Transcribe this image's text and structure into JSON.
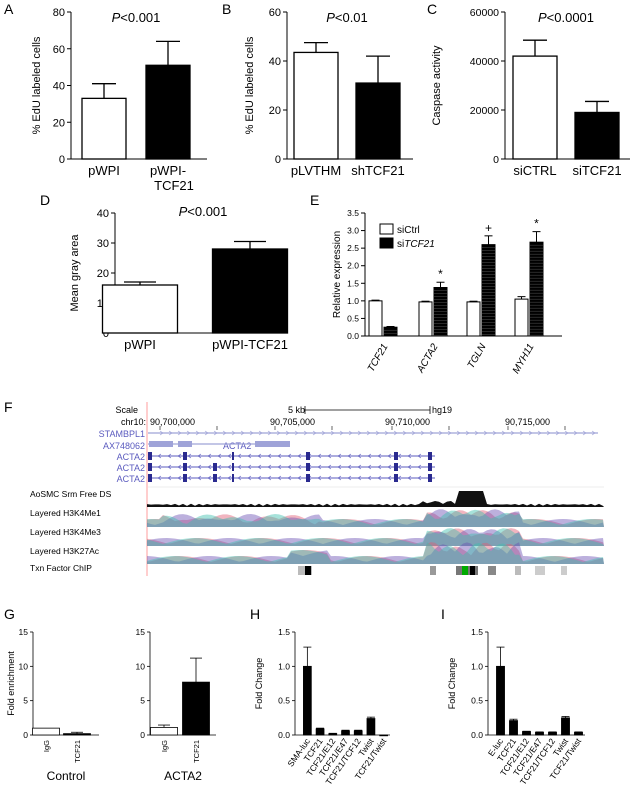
{
  "panels": {
    "A": {
      "letter": "A",
      "p": "P<0.001",
      "ylabel": "% EdU labeled cells",
      "ylim": [
        0,
        80
      ],
      "ticks": [
        "0",
        "20",
        "40",
        "60",
        "80"
      ],
      "cats": [
        "pWPI",
        "pWPI-"
      ],
      "cats2": [
        "",
        "TCF21"
      ],
      "values": [
        33,
        51
      ],
      "err": [
        8,
        13
      ]
    },
    "B": {
      "letter": "B",
      "p": "P<0.01",
      "ylabel": "% EdU labeled cells",
      "ylim": [
        0,
        60
      ],
      "ticks": [
        "0",
        "20",
        "40",
        "60"
      ],
      "cats": [
        "pLVTHM",
        "shTCF21"
      ],
      "values": [
        43.5,
        31
      ],
      "err": [
        4,
        11
      ]
    },
    "C": {
      "letter": "C",
      "p": "P<0.0001",
      "ylabel": "Caspase activity",
      "ylim": [
        0,
        60000
      ],
      "ticks": [
        "0",
        "20000",
        "40000",
        "60000"
      ],
      "cats": [
        "siCTRL",
        "siTCF21"
      ],
      "values": [
        42000,
        19000
      ],
      "err": [
        6500,
        4500
      ]
    },
    "D": {
      "letter": "D",
      "p": "P<0.001",
      "ylabel": "Mean gray area",
      "ylim": [
        0,
        40
      ],
      "ticks": [
        "0",
        "10",
        "20",
        "30",
        "40"
      ],
      "cats": [
        "pWPI",
        "pWPI-TCF21"
      ],
      "values": [
        16,
        28
      ],
      "err": [
        1,
        2.5
      ]
    },
    "E": {
      "letter": "E",
      "ylabel": "Relative expression",
      "ylim": [
        0,
        3.5
      ],
      "ticks": [
        "0.0",
        "0.5",
        "1.0",
        "1.5",
        "2.0",
        "2.5",
        "3.0",
        "3.5"
      ],
      "legend": [
        "siCtrl",
        "siTCF21"
      ],
      "cats": [
        "TCF21",
        "ACTA2",
        "TGLN",
        "MYH11"
      ],
      "ctrl": [
        1.0,
        0.97,
        0.97,
        1.05
      ],
      "ctrl_err": [
        0.02,
        0.02,
        0.02,
        0.07
      ],
      "si": [
        0.25,
        1.38,
        2.6,
        2.67
      ],
      "si_err": [
        0.02,
        0.15,
        0.25,
        0.3
      ],
      "marks": [
        "",
        "*",
        "+",
        "*"
      ]
    },
    "F": {
      "letter": "F",
      "scale": "Scale",
      "scale_val": "5 kb",
      "genome": "hg19",
      "chr": "chr10:",
      "positions": [
        "90,700,000",
        "90,705,000",
        "90,710,000",
        "90,715,000"
      ],
      "genes": [
        "STAMBPL1",
        "AX748062",
        "ACTA2",
        "ACTA2",
        "ACTA2",
        "ACTA2"
      ],
      "tracks": [
        "AoSMC Srm Free DS",
        "Layered H3K4Me1",
        "Layered H3K4Me3",
        "Layered H3K27Ac",
        "Txn Factor ChIP"
      ]
    },
    "G": {
      "letter": "G",
      "ylabel": "Fold enrichment",
      "ylim": [
        0,
        15
      ],
      "ticks": [
        "0",
        "5",
        "10",
        "15"
      ],
      "groups": [
        {
          "title": "Control",
          "cats": [
            "IgG",
            "TCF21"
          ],
          "values": [
            1.0,
            0.2
          ],
          "err": [
            0,
            0.2
          ]
        },
        {
          "title": "ACTA2",
          "cats": [
            "IgG",
            "TCF21"
          ],
          "values": [
            1.1,
            7.7
          ],
          "err": [
            0.35,
            3.5
          ]
        }
      ]
    },
    "H": {
      "letter": "H",
      "ylabel": "Fold Change",
      "ylim": [
        0,
        1.5
      ],
      "ticks": [
        "0.0",
        "0.5",
        "1.0",
        "1.5"
      ],
      "cats": [
        "SMA-luc",
        "TCF21",
        "TCF21/E12",
        "TCF21/E47",
        "TCF21/TCF12",
        "Twist",
        "TCF21/Twist"
      ],
      "values": [
        1.0,
        0.09,
        0.02,
        0.06,
        0.06,
        0.24,
        0.0
      ],
      "err": [
        0.28,
        0.01,
        0.005,
        0.01,
        0.01,
        0.02,
        0
      ]
    },
    "I": {
      "letter": "I",
      "ylabel": "Fold Change",
      "ylim": [
        0,
        1.5
      ],
      "ticks": [
        "0.0",
        "0.5",
        "1.0",
        "1.5"
      ],
      "cats": [
        "E-luc",
        "TCF21",
        "TCF21/E12",
        "TCF21/E47",
        "TCF21/TCF12",
        "Twist",
        "TCF21/Twist"
      ],
      "values": [
        1.0,
        0.21,
        0.05,
        0.04,
        0.04,
        0.25,
        0.04
      ],
      "err": [
        0.28,
        0.02,
        0.005,
        0.005,
        0.005,
        0.02,
        0.005
      ]
    }
  },
  "chart_data": [
    {
      "type": "bar",
      "panel": "A",
      "categories": [
        "pWPI",
        "pWPI-TCF21"
      ],
      "values": [
        33,
        51
      ],
      "ylabel": "% EdU labeled cells",
      "ylim": [
        0,
        80
      ]
    },
    {
      "type": "bar",
      "panel": "B",
      "categories": [
        "pLVTHM",
        "shTCF21"
      ],
      "values": [
        43.5,
        31
      ],
      "ylabel": "% EdU labeled cells",
      "ylim": [
        0,
        60
      ]
    },
    {
      "type": "bar",
      "panel": "C",
      "categories": [
        "siCTRL",
        "siTCF21"
      ],
      "values": [
        42000,
        19000
      ],
      "ylabel": "Caspase activity",
      "ylim": [
        0,
        60000
      ]
    },
    {
      "type": "bar",
      "panel": "D",
      "categories": [
        "pWPI",
        "pWPI-TCF21"
      ],
      "values": [
        16,
        28
      ],
      "ylabel": "Mean gray area",
      "ylim": [
        0,
        40
      ]
    },
    {
      "type": "bar",
      "panel": "E",
      "categories": [
        "TCF21",
        "ACTA2",
        "TGLN",
        "MYH11"
      ],
      "series": [
        {
          "name": "siCtrl",
          "values": [
            1.0,
            0.97,
            0.97,
            1.05
          ]
        },
        {
          "name": "siTCF21",
          "values": [
            0.25,
            1.38,
            2.6,
            2.67
          ]
        }
      ],
      "ylabel": "Relative expression",
      "ylim": [
        0,
        3.5
      ]
    },
    {
      "type": "bar",
      "panel": "G",
      "categories": [
        "Control IgG",
        "Control TCF21",
        "ACTA2 IgG",
        "ACTA2 TCF21"
      ],
      "values": [
        1.0,
        0.2,
        1.1,
        7.7
      ],
      "ylabel": "Fold enrichment",
      "ylim": [
        0,
        15
      ]
    },
    {
      "type": "bar",
      "panel": "H",
      "categories": [
        "SMA-luc",
        "TCF21",
        "TCF21/E12",
        "TCF21/E47",
        "TCF21/TCF12",
        "Twist",
        "TCF21/Twist"
      ],
      "values": [
        1.0,
        0.09,
        0.02,
        0.06,
        0.06,
        0.24,
        0.0
      ],
      "ylabel": "Fold Change",
      "ylim": [
        0,
        1.5
      ]
    },
    {
      "type": "bar",
      "panel": "I",
      "categories": [
        "E-luc",
        "TCF21",
        "TCF21/E12",
        "TCF21/E47",
        "TCF21/TCF12",
        "Twist",
        "TCF21/Twist"
      ],
      "values": [
        1.0,
        0.21,
        0.05,
        0.04,
        0.04,
        0.25,
        0.04
      ],
      "ylabel": "Fold Change",
      "ylim": [
        0,
        1.5
      ]
    }
  ]
}
